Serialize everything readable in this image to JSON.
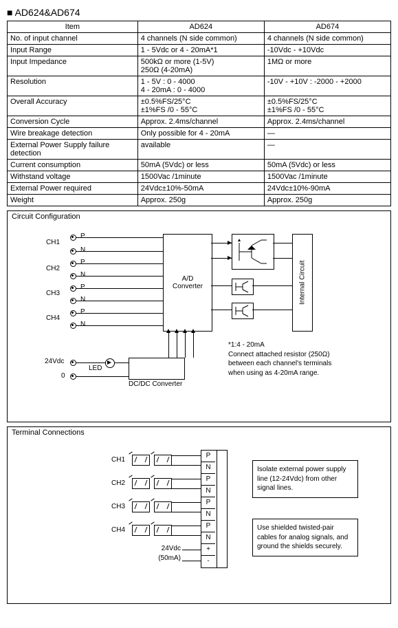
{
  "title": "AD624&AD674",
  "table": {
    "headers": [
      "Item",
      "AD624",
      "AD674"
    ],
    "rows": [
      {
        "item": "No. of input channel",
        "c1": "4 channels (N side common)",
        "c2": "4 channels (N side common)"
      },
      {
        "item": "Input Range",
        "c1": "1 - 5Vdc or 4 - 20mA*1",
        "c2": "-10Vdc - +10Vdc"
      },
      {
        "item": "Input Impedance",
        "c1": "500kΩ or more (1-5V)\n250Ω (4-20mA)",
        "c2": "1MΩ or more"
      },
      {
        "item": "Resolution",
        "c1": "1 - 5V : 0 - 4000\n4 - 20mA : 0 - 4000",
        "c2": "-10V - +10V : -2000 - +2000"
      },
      {
        "item": "Overall Accuracy",
        "c1": "±0.5%FS/25°C\n±1%FS /0 - 55°C",
        "c2": "±0.5%FS/25°C\n±1%FS /0 - 55°C"
      },
      {
        "item": "Conversion Cycle",
        "c1": "Approx. 2.4ms/channel",
        "c2": "Approx. 2.4ms/channel"
      },
      {
        "item": "Wire breakage detection",
        "c1": "Only possible for 4 - 20mA",
        "c2": "—",
        "c2dash": true
      },
      {
        "item": "External Power Supply failure detection",
        "c1": "available",
        "c2": "—",
        "c2dash": true
      },
      {
        "item": "Current consumption",
        "c1": "50mA (5Vdc) or less",
        "c2": "50mA (5Vdc) or less"
      },
      {
        "item": "Withstand voltage",
        "c1": "1500Vac /1minute",
        "c2": "1500Vac /1minute"
      },
      {
        "item": "External Power required",
        "c1": "24Vdc±10%-50mA",
        "c2": "24Vdc±10%-90mA"
      },
      {
        "item": "Weight",
        "c1": "Approx. 250g",
        "c2": "Approx. 250g"
      }
    ]
  },
  "circuit": {
    "label": "Circuit Configuration",
    "channels": [
      "CH1",
      "CH2",
      "CH3",
      "CH4"
    ],
    "pins": [
      "P",
      "N",
      "P",
      "N",
      "P",
      "N",
      "P",
      "N"
    ],
    "power_labels": {
      "v24": "24Vdc",
      "zero": "0",
      "led": "LED"
    },
    "blocks": {
      "adc": "A/D\nConverter",
      "dcdc": "DC/DC Converter",
      "internal": "Internal Circuit"
    },
    "note": "*1:4 - 20mA\nConnect attached resistor (250Ω) between each channel's terminals when using as 4-20mA range."
  },
  "terminal": {
    "label": "Terminal Connections",
    "channels": [
      "CH1",
      "CH2",
      "CH3",
      "CH4"
    ],
    "pinlabels": [
      "P",
      "N",
      "P",
      "N",
      "P",
      "N",
      "P",
      "N",
      "+",
      "-"
    ],
    "power": {
      "v": "24Vdc",
      "ma": "(50mA)"
    },
    "note1": "Isolate external power supply line (12-24Vdc) from other signal lines.",
    "note2": "Use shielded twisted-pair cables for analog signals, and ground the shields securely."
  }
}
